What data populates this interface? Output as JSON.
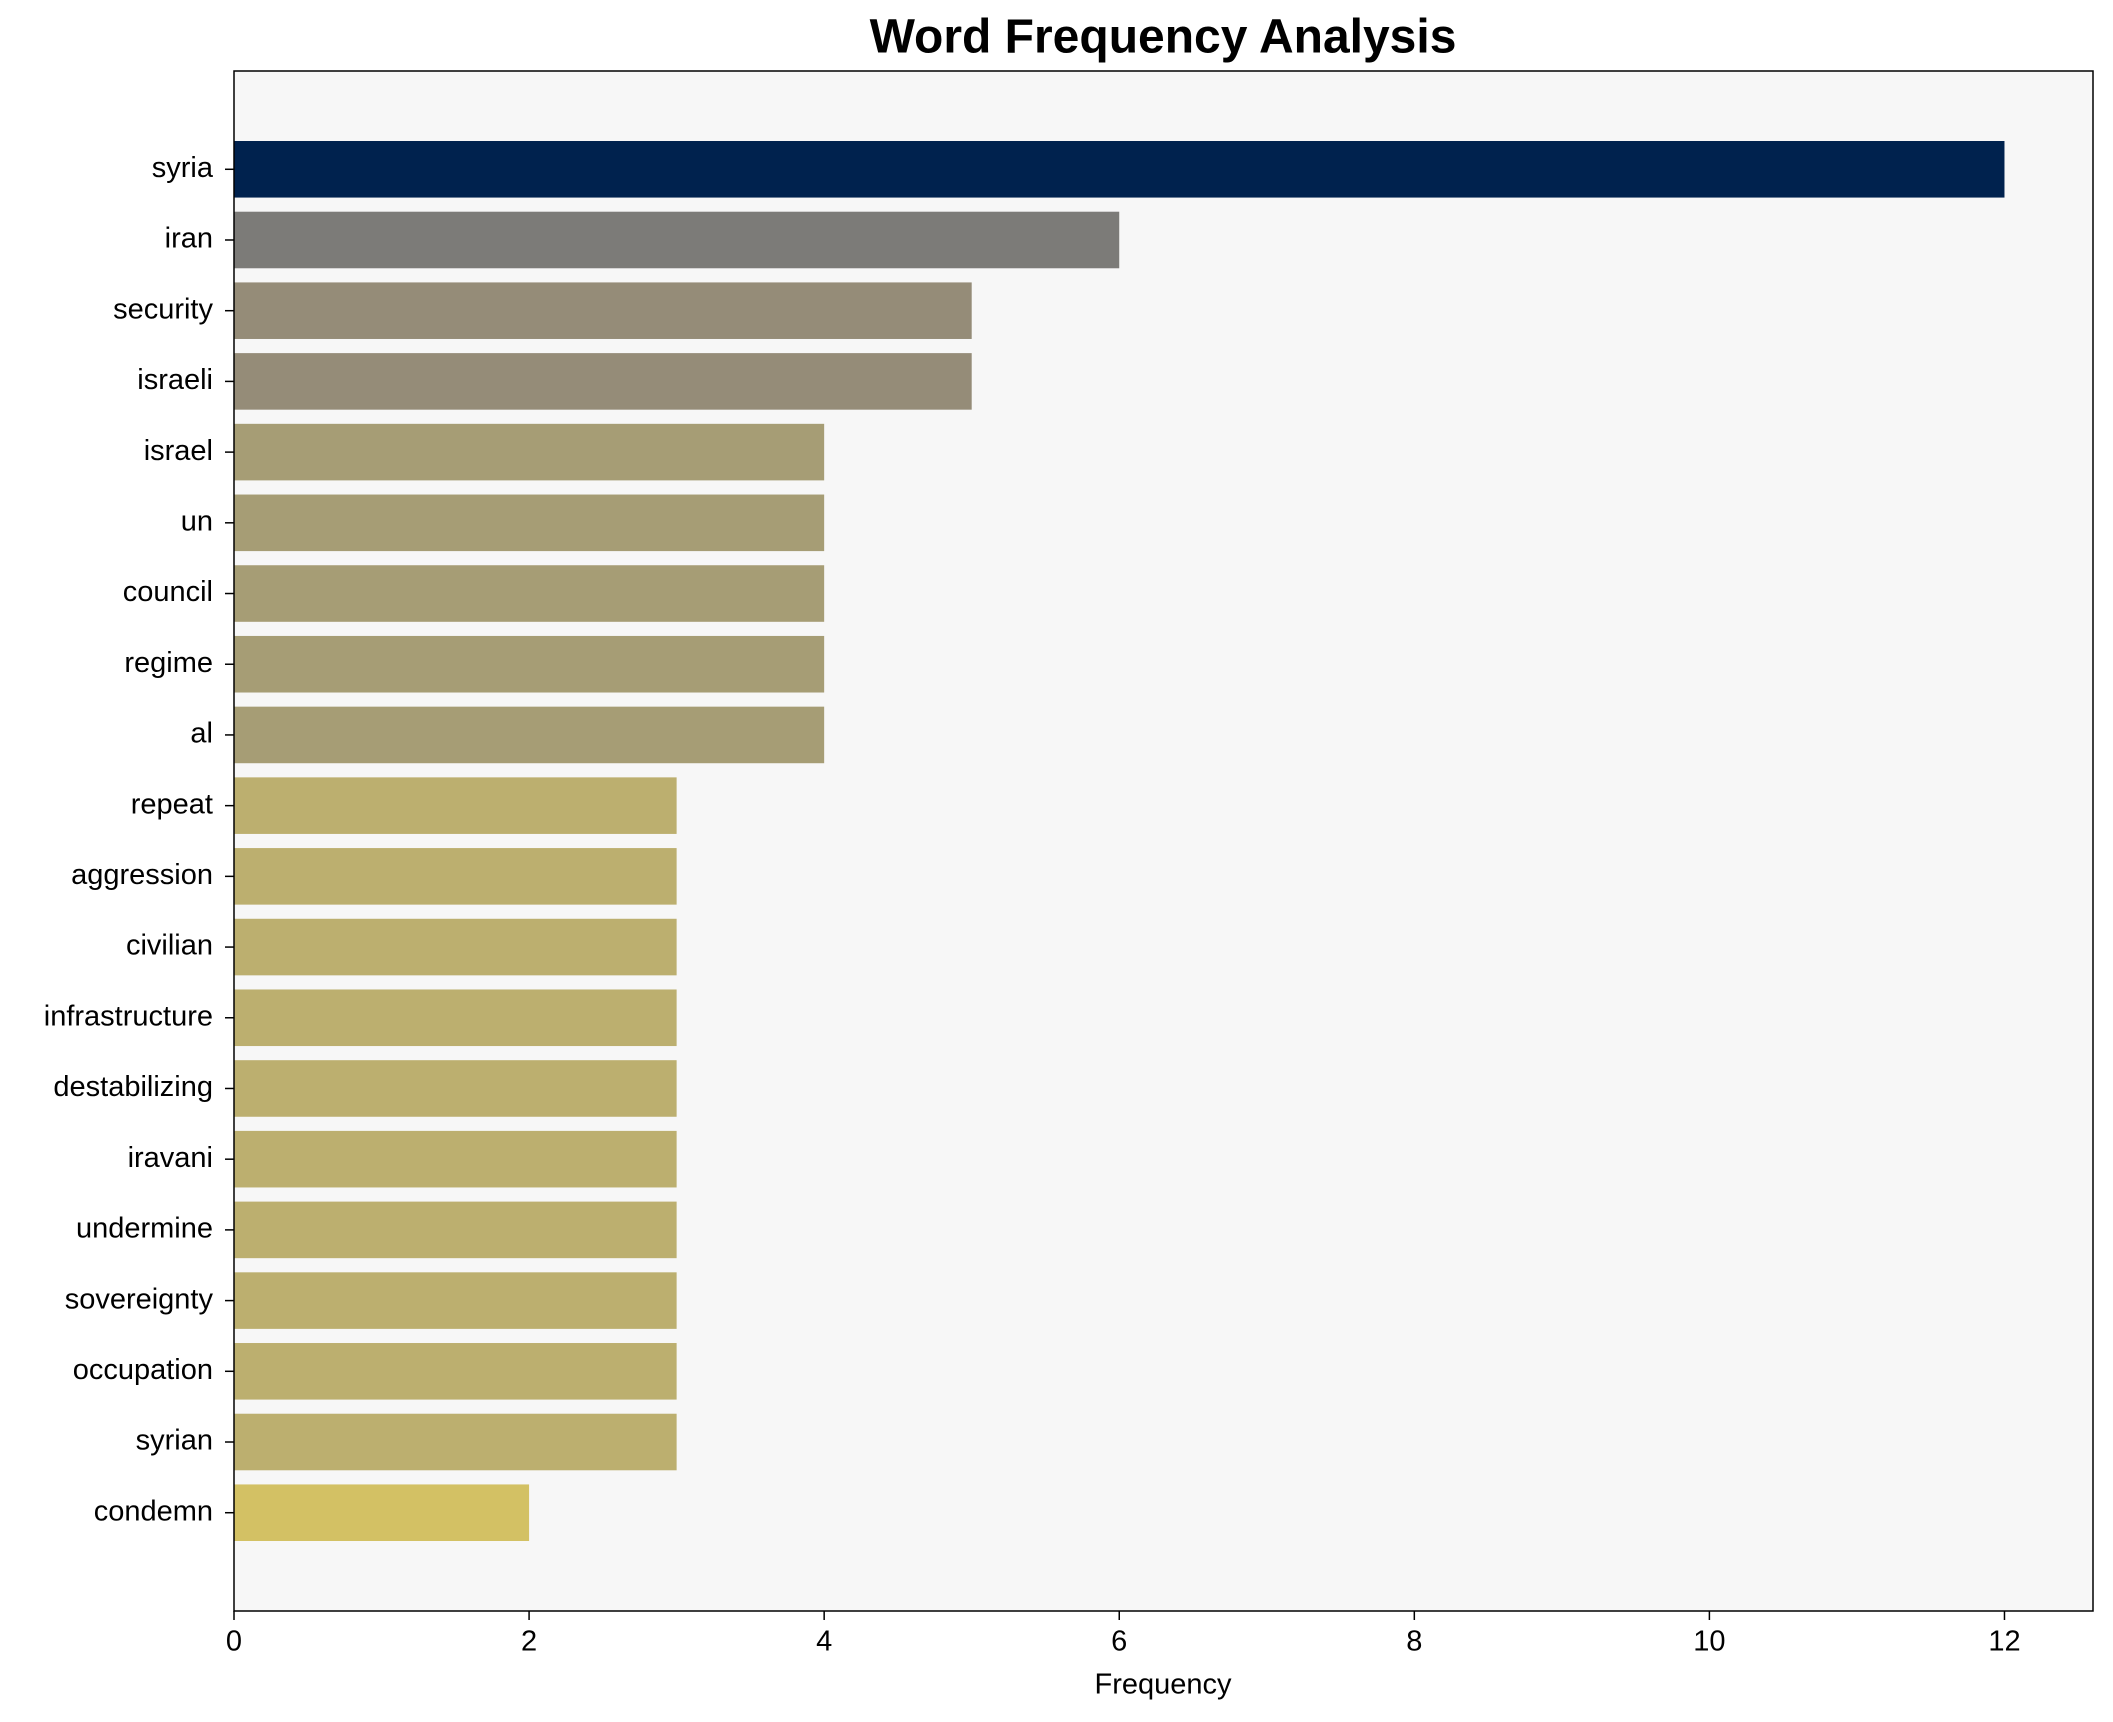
{
  "chart_data": {
    "type": "bar",
    "orientation": "horizontal",
    "title": "Word Frequency Analysis",
    "xlabel": "Frequency",
    "categories": [
      "syria",
      "iran",
      "security",
      "israeli",
      "israel",
      "un",
      "council",
      "regime",
      "al",
      "repeat",
      "aggression",
      "civilian",
      "infrastructure",
      "destabilizing",
      "iravani",
      "undermine",
      "sovereignty",
      "occupation",
      "syrian",
      "condemn"
    ],
    "values": [
      12,
      6,
      5,
      5,
      4,
      4,
      4,
      4,
      4,
      3,
      3,
      3,
      3,
      3,
      3,
      3,
      3,
      3,
      3,
      2
    ],
    "colors": [
      "#00224e",
      "#7c7b78",
      "#958c78",
      "#958c78",
      "#a69d75",
      "#a69d75",
      "#a69d75",
      "#a69d75",
      "#a69d75",
      "#bcaf6f",
      "#bcaf6f",
      "#bcaf6f",
      "#bcaf6f",
      "#bcaf6f",
      "#bcaf6f",
      "#bcaf6f",
      "#bcaf6f",
      "#bcaf6f",
      "#bcaf6f",
      "#d3c164"
    ],
    "xlim": [
      0,
      12.6
    ],
    "xticks": [
      0,
      2,
      4,
      6,
      8,
      10,
      12
    ],
    "grid": false,
    "background": "#f7f7f7"
  }
}
